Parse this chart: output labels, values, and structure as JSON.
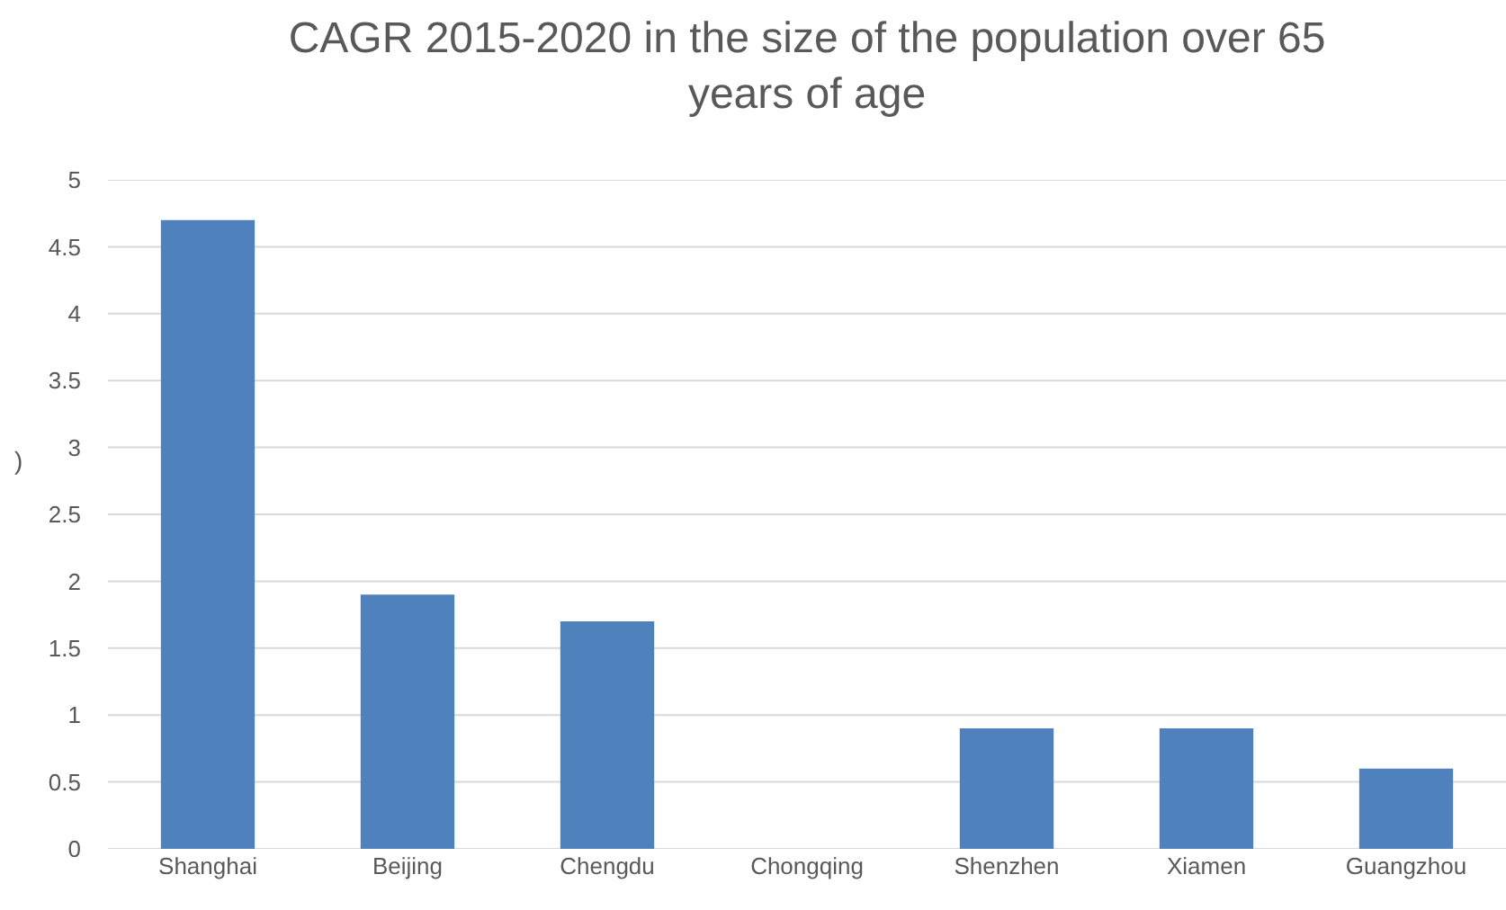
{
  "chart_data": {
    "type": "bar",
    "title": "CAGR 2015-2020 in the size of the population over 65 years of age",
    "ylabel": ")",
    "categories": [
      "Shanghai",
      "Beijing",
      "Chengdu",
      "Chongqing",
      "Shenzhen",
      "Xiamen",
      "Guangzhou"
    ],
    "values": [
      4.7,
      1.9,
      1.7,
      null,
      0.9,
      0.9,
      0.6
    ],
    "color": "#4f81bd",
    "ylim": [
      0,
      5
    ],
    "yticks": [
      0,
      0.5,
      1,
      1.5,
      2,
      2.5,
      3,
      3.5,
      4,
      4.5,
      5
    ],
    "grid": "y"
  }
}
